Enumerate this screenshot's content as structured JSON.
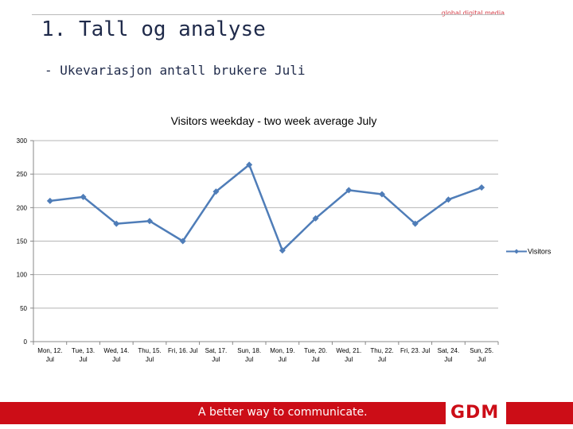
{
  "slide": {
    "brand_top": "global digital media",
    "title": "1. Tall og analyse",
    "subtitle": "- Ukevariasjon antall brukere Juli",
    "footer_slogan": "A better way to communicate.",
    "footer_logo": "GDM"
  },
  "colors": {
    "accent_red": "#cc0d17",
    "series_blue": "#4f7db8",
    "title_navy": "#1f2a4a"
  },
  "chart_data": {
    "type": "line",
    "title": "Visitors weekday - two week average July",
    "categories": [
      [
        "Mon, 12.",
        "Jul"
      ],
      [
        "Tue, 13.",
        "Jul"
      ],
      [
        "Wed, 14.",
        "Jul"
      ],
      [
        "Thu, 15.",
        "Jul"
      ],
      [
        "Fri, 16. Jul",
        ""
      ],
      [
        "Sat, 17.",
        "Jul"
      ],
      [
        "Sun, 18.",
        "Jul"
      ],
      [
        "Mon, 19.",
        "Jul"
      ],
      [
        "Tue, 20.",
        "Jul"
      ],
      [
        "Wed, 21.",
        "Jul"
      ],
      [
        "Thu, 22.",
        "Jul"
      ],
      [
        "Fri, 23. Jul",
        ""
      ],
      [
        "Sat, 24.",
        "Jul"
      ],
      [
        "Sun, 25.",
        "Jul"
      ]
    ],
    "series": [
      {
        "name": "Visitors",
        "values": [
          210,
          216,
          176,
          180,
          150,
          224,
          264,
          136,
          184,
          226,
          220,
          176,
          212,
          230
        ]
      }
    ],
    "ylim": [
      0,
      300
    ],
    "yticks": [
      0,
      50,
      100,
      150,
      200,
      250,
      300
    ],
    "grid": true,
    "legend": "right"
  }
}
